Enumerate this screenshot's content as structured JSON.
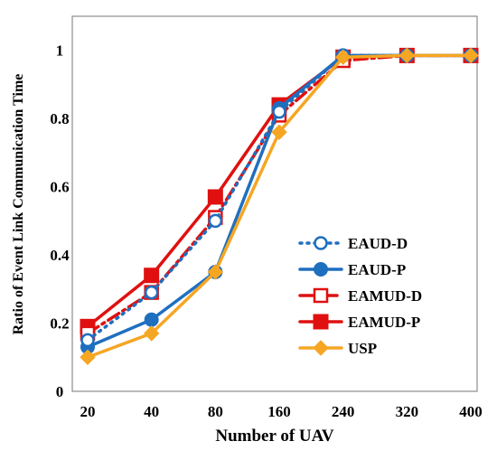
{
  "chart_data": {
    "type": "line",
    "xlabel": "Number of UAV",
    "ylabel": "Ratio of Event Link Communication Time",
    "categories": [
      "20",
      "40",
      "80",
      "160",
      "240",
      "320",
      "400"
    ],
    "yticks": [
      "0",
      "0.2",
      "0.4",
      "0.6",
      "0.8",
      "1"
    ],
    "ylim": [
      0,
      1.1
    ],
    "grid": false,
    "legend_position": "bottom-right",
    "series": [
      {
        "name": "EAUD-D",
        "values": [
          0.15,
          0.29,
          0.5,
          0.82,
          0.985,
          0.985,
          0.985
        ],
        "color": "#1f6fbf",
        "line": "dotted",
        "marker": "open-circle"
      },
      {
        "name": "EAUD-P",
        "values": [
          0.13,
          0.21,
          0.35,
          0.83,
          0.985,
          0.985,
          0.985
        ],
        "color": "#1f6fbf",
        "line": "solid",
        "marker": "filled-circle"
      },
      {
        "name": "EAMUD-D",
        "values": [
          0.17,
          0.29,
          0.51,
          0.81,
          0.97,
          0.985,
          0.985
        ],
        "color": "#e01010",
        "line": "dashdot",
        "marker": "open-square"
      },
      {
        "name": "EAMUD-P",
        "values": [
          0.19,
          0.34,
          0.57,
          0.84,
          0.98,
          0.985,
          0.985
        ],
        "color": "#e01010",
        "line": "solid",
        "marker": "filled-square"
      },
      {
        "name": "USP",
        "values": [
          0.1,
          0.17,
          0.35,
          0.76,
          0.98,
          0.985,
          0.985
        ],
        "color": "#f5a623",
        "line": "solid",
        "marker": "filled-diamond"
      }
    ]
  }
}
